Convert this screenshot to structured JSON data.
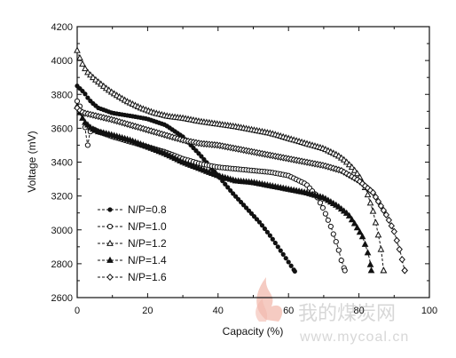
{
  "chart_data": {
    "type": "line",
    "xlabel": "Capacity (%)",
    "ylabel": "Voltage (mV)",
    "xlim": [
      0,
      100
    ],
    "ylim": [
      2600,
      4200
    ],
    "x_ticks": [
      "0",
      "20",
      "40",
      "60",
      "80",
      "100"
    ],
    "y_ticks": [
      "2600",
      "2800",
      "3000",
      "3200",
      "3400",
      "3600",
      "3800",
      "4000",
      "4200"
    ],
    "grid": false,
    "legend_position": "bottom-left",
    "series": [
      {
        "name": "N/P=0.8",
        "marker": "filled-circle",
        "x": [
          0,
          1,
          2,
          3,
          4,
          6,
          8,
          10,
          13,
          16,
          20,
          25,
          30,
          35,
          40,
          44,
          48,
          52,
          55,
          57,
          59,
          60,
          61,
          61.8
        ],
        "y": [
          3850,
          3830,
          3810,
          3780,
          3755,
          3720,
          3705,
          3690,
          3680,
          3670,
          3655,
          3620,
          3550,
          3440,
          3320,
          3220,
          3130,
          3040,
          2960,
          2900,
          2840,
          2810,
          2780,
          2755
        ]
      },
      {
        "name": "N/P=1.0",
        "marker": "open-circle",
        "x": [
          0,
          1,
          2,
          2.5,
          3,
          3.5,
          4,
          6,
          10,
          15,
          20,
          25,
          30,
          35,
          40,
          45,
          50,
          55,
          60,
          65,
          68,
          70,
          72,
          74,
          75,
          76
        ],
        "y": [
          3760,
          3720,
          3650,
          3560,
          3500,
          3560,
          3600,
          3580,
          3550,
          3520,
          3490,
          3460,
          3420,
          3390,
          3370,
          3360,
          3350,
          3340,
          3320,
          3270,
          3200,
          3120,
          3020,
          2900,
          2820,
          2760
        ]
      },
      {
        "name": "N/P=1.2",
        "marker": "open-triangle",
        "x": [
          0,
          1,
          2,
          3,
          5,
          8,
          10,
          14,
          18,
          22,
          26,
          30,
          35,
          40,
          45,
          50,
          55,
          60,
          65,
          70,
          74,
          76,
          78,
          80,
          82,
          84,
          85,
          86,
          86.5,
          87
        ],
        "y": [
          4060,
          4000,
          3960,
          3930,
          3890,
          3840,
          3810,
          3760,
          3720,
          3690,
          3670,
          3660,
          3640,
          3625,
          3610,
          3590,
          3570,
          3540,
          3510,
          3480,
          3440,
          3410,
          3370,
          3320,
          3240,
          3110,
          3020,
          2920,
          2850,
          2760
        ]
      },
      {
        "name": "N/P=1.4",
        "marker": "filled-triangle",
        "x": [
          0,
          1,
          2,
          4,
          6,
          10,
          15,
          20,
          25,
          30,
          35,
          40,
          45,
          50,
          55,
          60,
          65,
          70,
          74,
          77,
          79,
          81,
          82,
          83,
          83.5
        ],
        "y": [
          3730,
          3680,
          3640,
          3600,
          3580,
          3560,
          3530,
          3490,
          3450,
          3400,
          3360,
          3320,
          3290,
          3280,
          3260,
          3240,
          3220,
          3190,
          3140,
          3090,
          3030,
          2960,
          2900,
          2830,
          2760
        ]
      },
      {
        "name": "N/P=1.6",
        "marker": "open-diamond",
        "x": [
          0,
          1,
          2,
          4,
          6,
          10,
          15,
          20,
          25,
          30,
          35,
          40,
          45,
          50,
          55,
          60,
          65,
          70,
          75,
          80,
          84,
          86,
          88,
          90,
          91,
          92,
          92.5,
          93
        ],
        "y": [
          3720,
          3700,
          3690,
          3680,
          3670,
          3650,
          3620,
          3590,
          3560,
          3530,
          3510,
          3500,
          3480,
          3460,
          3440,
          3420,
          3400,
          3380,
          3350,
          3290,
          3220,
          3150,
          3080,
          2990,
          2920,
          2850,
          2800,
          2760
        ]
      }
    ]
  },
  "watermark": {
    "text_cn": "我的煤炭网",
    "url": "www.mycoal.cn"
  },
  "colors": {
    "ink": "#111111",
    "watermark": "#d7d7d7",
    "flame": "#f1b9ad"
  }
}
